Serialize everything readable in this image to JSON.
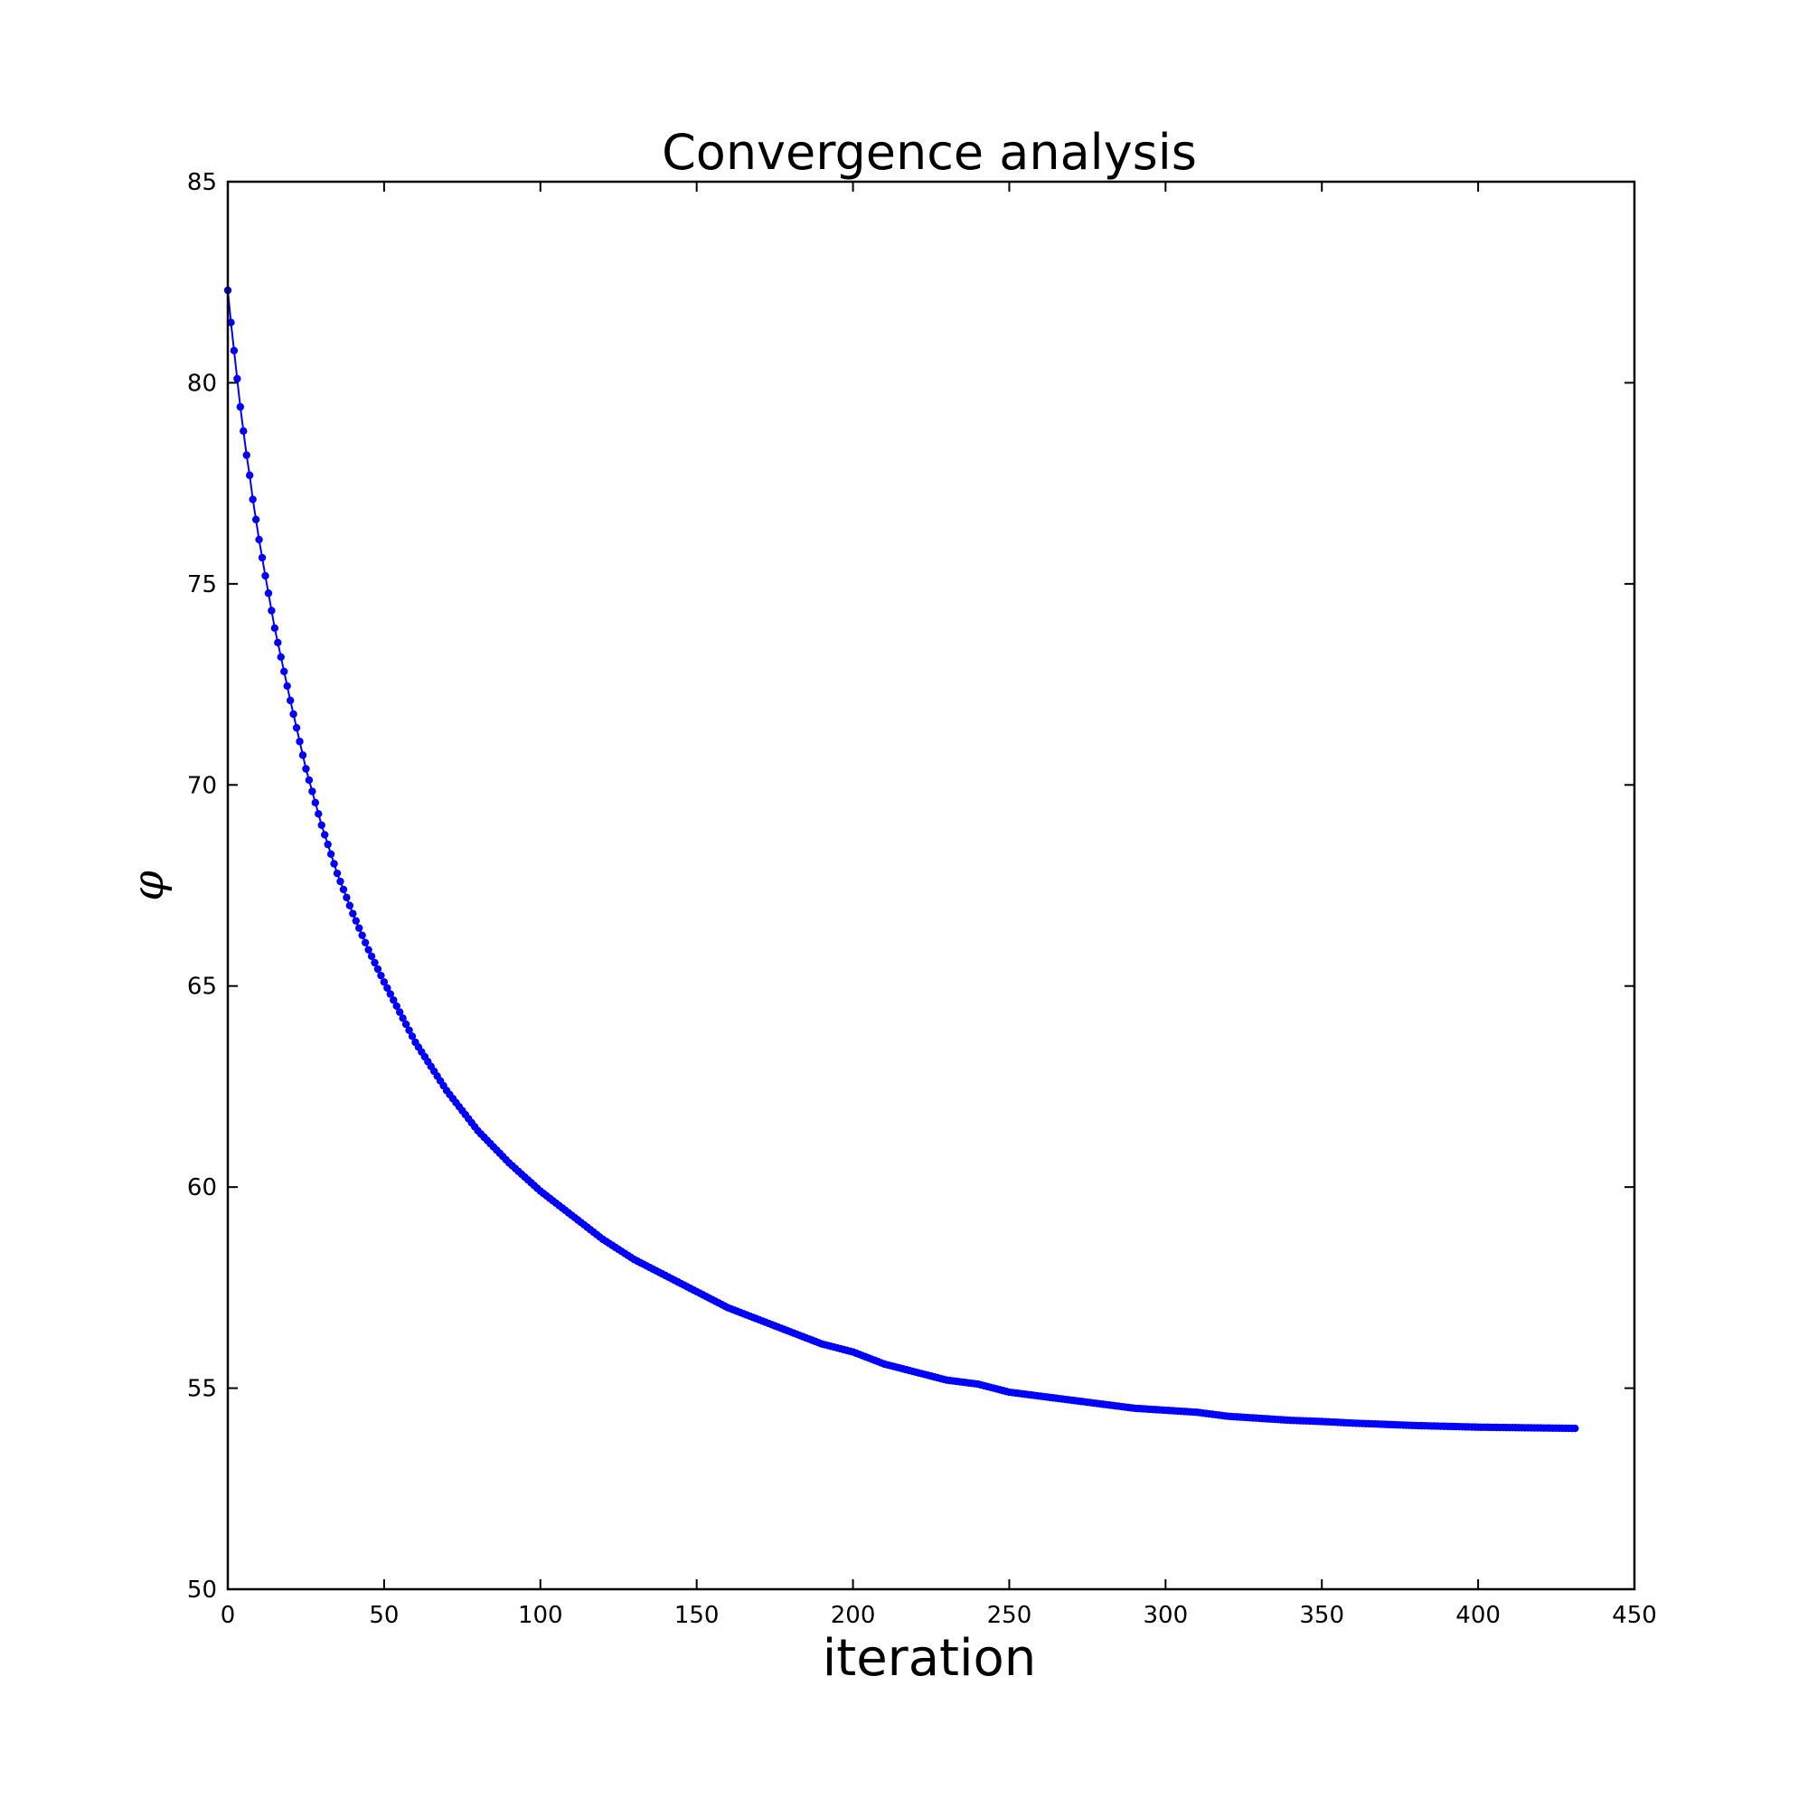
{
  "chart_data": {
    "type": "line",
    "title": "Convergence analysis",
    "xlabel": "iteration",
    "ylabel": "φ",
    "xlim": [
      0,
      450
    ],
    "ylim": [
      50,
      85
    ],
    "xticks": [
      0,
      50,
      100,
      150,
      200,
      250,
      300,
      350,
      400,
      450
    ],
    "yticks": [
      50,
      55,
      60,
      65,
      70,
      75,
      80,
      85
    ],
    "grid": false,
    "marker": "dot",
    "color": "#0000ff",
    "series": [
      {
        "x": [
          0,
          1,
          2,
          3,
          4,
          5,
          6,
          7,
          8,
          9,
          10,
          12,
          15,
          20,
          25,
          30,
          35,
          40,
          45,
          50,
          60,
          70,
          80,
          90,
          100,
          110,
          120,
          130,
          140,
          150,
          160,
          170,
          180,
          190,
          200,
          210,
          220,
          230,
          240,
          250,
          260,
          270,
          280,
          290,
          300,
          310,
          320,
          330,
          340,
          350,
          360,
          370,
          380,
          390,
          400,
          410,
          420,
          431
        ],
        "y": [
          82.3,
          81.5,
          80.8,
          80.1,
          79.4,
          78.8,
          78.2,
          77.7,
          77.1,
          76.6,
          76.1,
          75.2,
          73.9,
          72.1,
          70.4,
          69.0,
          67.8,
          66.8,
          65.9,
          65.1,
          63.6,
          62.4,
          61.4,
          60.6,
          59.9,
          59.3,
          58.7,
          58.2,
          57.8,
          57.4,
          57.0,
          56.7,
          56.4,
          56.1,
          55.9,
          55.6,
          55.4,
          55.2,
          55.1,
          54.9,
          54.8,
          54.7,
          54.6,
          54.5,
          54.45,
          54.4,
          54.3,
          54.25,
          54.2,
          54.17,
          54.13,
          54.1,
          54.07,
          54.05,
          54.03,
          54.02,
          54.01,
          54.0
        ]
      }
    ]
  }
}
